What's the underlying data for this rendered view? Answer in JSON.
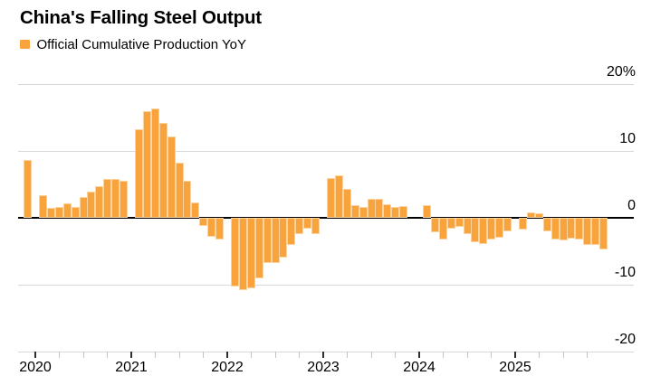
{
  "chart_data": {
    "type": "bar",
    "title": "China's Falling Steel Output",
    "series_name": "Official Cumulative Production YoY",
    "unit": "%",
    "grid": "horizontal-only",
    "legend_position": "top-left",
    "ylim": [
      -20,
      20
    ],
    "y_ticks": [
      {
        "value": 20,
        "label": "20%"
      },
      {
        "value": 10,
        "label": "10"
      },
      {
        "value": 0,
        "label": "0"
      },
      {
        "value": -10,
        "label": "-10"
      },
      {
        "value": -20,
        "label": "-20"
      }
    ],
    "x_tick_years": [
      "2020",
      "2021",
      "2022",
      "2023",
      "2024",
      "2025"
    ],
    "points": [
      {
        "date": "2019-12",
        "value": 8.3
      },
      {
        "date": "2020-02",
        "value": 3.1
      },
      {
        "date": "2020-03",
        "value": 1.2
      },
      {
        "date": "2020-04",
        "value": 1.3
      },
      {
        "date": "2020-05",
        "value": 1.9
      },
      {
        "date": "2020-06",
        "value": 1.4
      },
      {
        "date": "2020-07",
        "value": 2.8
      },
      {
        "date": "2020-08",
        "value": 3.7
      },
      {
        "date": "2020-09",
        "value": 4.5
      },
      {
        "date": "2020-10",
        "value": 5.5
      },
      {
        "date": "2020-11",
        "value": 5.5
      },
      {
        "date": "2020-12",
        "value": 5.2
      },
      {
        "date": "2021-02",
        "value": 12.9
      },
      {
        "date": "2021-03",
        "value": 15.6
      },
      {
        "date": "2021-04",
        "value": 16.0
      },
      {
        "date": "2021-05",
        "value": 13.9
      },
      {
        "date": "2021-06",
        "value": 11.8
      },
      {
        "date": "2021-07",
        "value": 8.0
      },
      {
        "date": "2021-08",
        "value": 5.3
      },
      {
        "date": "2021-09",
        "value": 2.0
      },
      {
        "date": "2021-10",
        "value": -0.9
      },
      {
        "date": "2021-11",
        "value": -2.6
      },
      {
        "date": "2021-12",
        "value": -3.0
      },
      {
        "date": "2022-02",
        "value": -10.0
      },
      {
        "date": "2022-03",
        "value": -10.5
      },
      {
        "date": "2022-04",
        "value": -10.3
      },
      {
        "date": "2022-05",
        "value": -8.7
      },
      {
        "date": "2022-06",
        "value": -6.5
      },
      {
        "date": "2022-07",
        "value": -6.4
      },
      {
        "date": "2022-08",
        "value": -5.7
      },
      {
        "date": "2022-09",
        "value": -3.7
      },
      {
        "date": "2022-10",
        "value": -2.2
      },
      {
        "date": "2022-11",
        "value": -1.4
      },
      {
        "date": "2022-12",
        "value": -2.1
      },
      {
        "date": "2023-02",
        "value": 5.6
      },
      {
        "date": "2023-03",
        "value": 6.1
      },
      {
        "date": "2023-04",
        "value": 4.1
      },
      {
        "date": "2023-05",
        "value": 1.6
      },
      {
        "date": "2023-06",
        "value": 1.3
      },
      {
        "date": "2023-07",
        "value": 2.5
      },
      {
        "date": "2023-08",
        "value": 2.6
      },
      {
        "date": "2023-09",
        "value": 1.7
      },
      {
        "date": "2023-10",
        "value": 1.4
      },
      {
        "date": "2023-11",
        "value": 1.5
      },
      {
        "date": "2023-12",
        "value": 0.0
      },
      {
        "date": "2024-02",
        "value": 1.6
      },
      {
        "date": "2024-03",
        "value": -1.9
      },
      {
        "date": "2024-04",
        "value": -3.0
      },
      {
        "date": "2024-05",
        "value": -1.4
      },
      {
        "date": "2024-06",
        "value": -1.1
      },
      {
        "date": "2024-07",
        "value": -2.2
      },
      {
        "date": "2024-08",
        "value": -3.3
      },
      {
        "date": "2024-09",
        "value": -3.6
      },
      {
        "date": "2024-10",
        "value": -3.0
      },
      {
        "date": "2024-11",
        "value": -2.7
      },
      {
        "date": "2024-12",
        "value": -1.7
      },
      {
        "date": "2025-02",
        "value": -1.5
      },
      {
        "date": "2025-03",
        "value": 0.6
      },
      {
        "date": "2025-04",
        "value": 0.4
      },
      {
        "date": "2025-05",
        "value": -1.7
      },
      {
        "date": "2025-06",
        "value": -3.0
      },
      {
        "date": "2025-07",
        "value": -3.1
      },
      {
        "date": "2025-08",
        "value": -2.8
      },
      {
        "date": "2025-09",
        "value": -2.9
      },
      {
        "date": "2025-10",
        "value": -3.8
      },
      {
        "date": "2025-11",
        "value": -3.7
      },
      {
        "date": "2025-12",
        "value": -4.4
      }
    ]
  },
  "colors": {
    "bar": "#F8A33C",
    "bar_halo": "#FBD3A0",
    "gridline": "#d8d8d8",
    "zero_axis": "#000000",
    "text": "#000000",
    "year_tick": "#2e2e2e",
    "quarter_tick": "#c4c4c4"
  }
}
